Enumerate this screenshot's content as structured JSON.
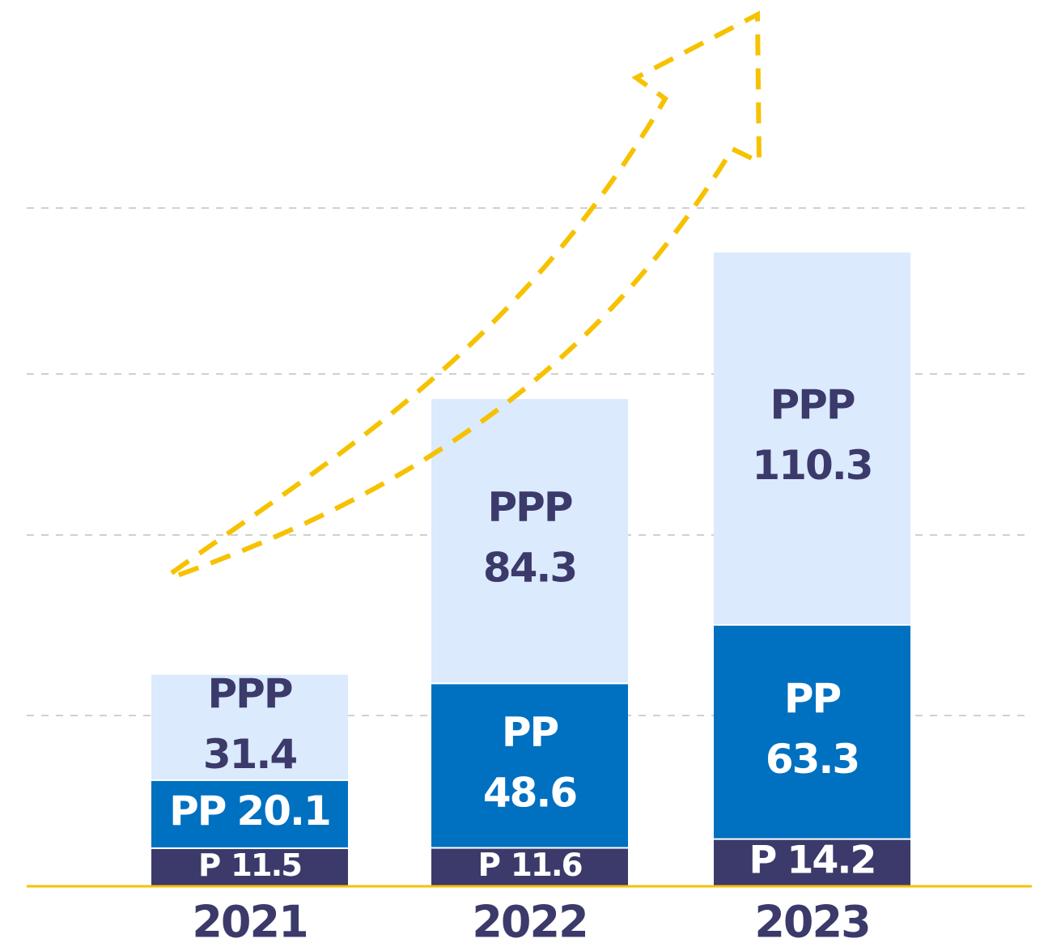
{
  "chart_data": {
    "type": "stacked-bar",
    "categories": [
      "2021",
      "2022",
      "2023"
    ],
    "series": [
      {
        "name": "P",
        "color": "#3b3a6b",
        "values": [
          11.5,
          11.6,
          14.2
        ]
      },
      {
        "name": "PP",
        "color": "#0070c0",
        "values": [
          20.1,
          48.6,
          63.3
        ]
      },
      {
        "name": "PPP",
        "color": "#dbeafc",
        "values": [
          31.4,
          84.3,
          110.3
        ]
      }
    ]
  }
}
